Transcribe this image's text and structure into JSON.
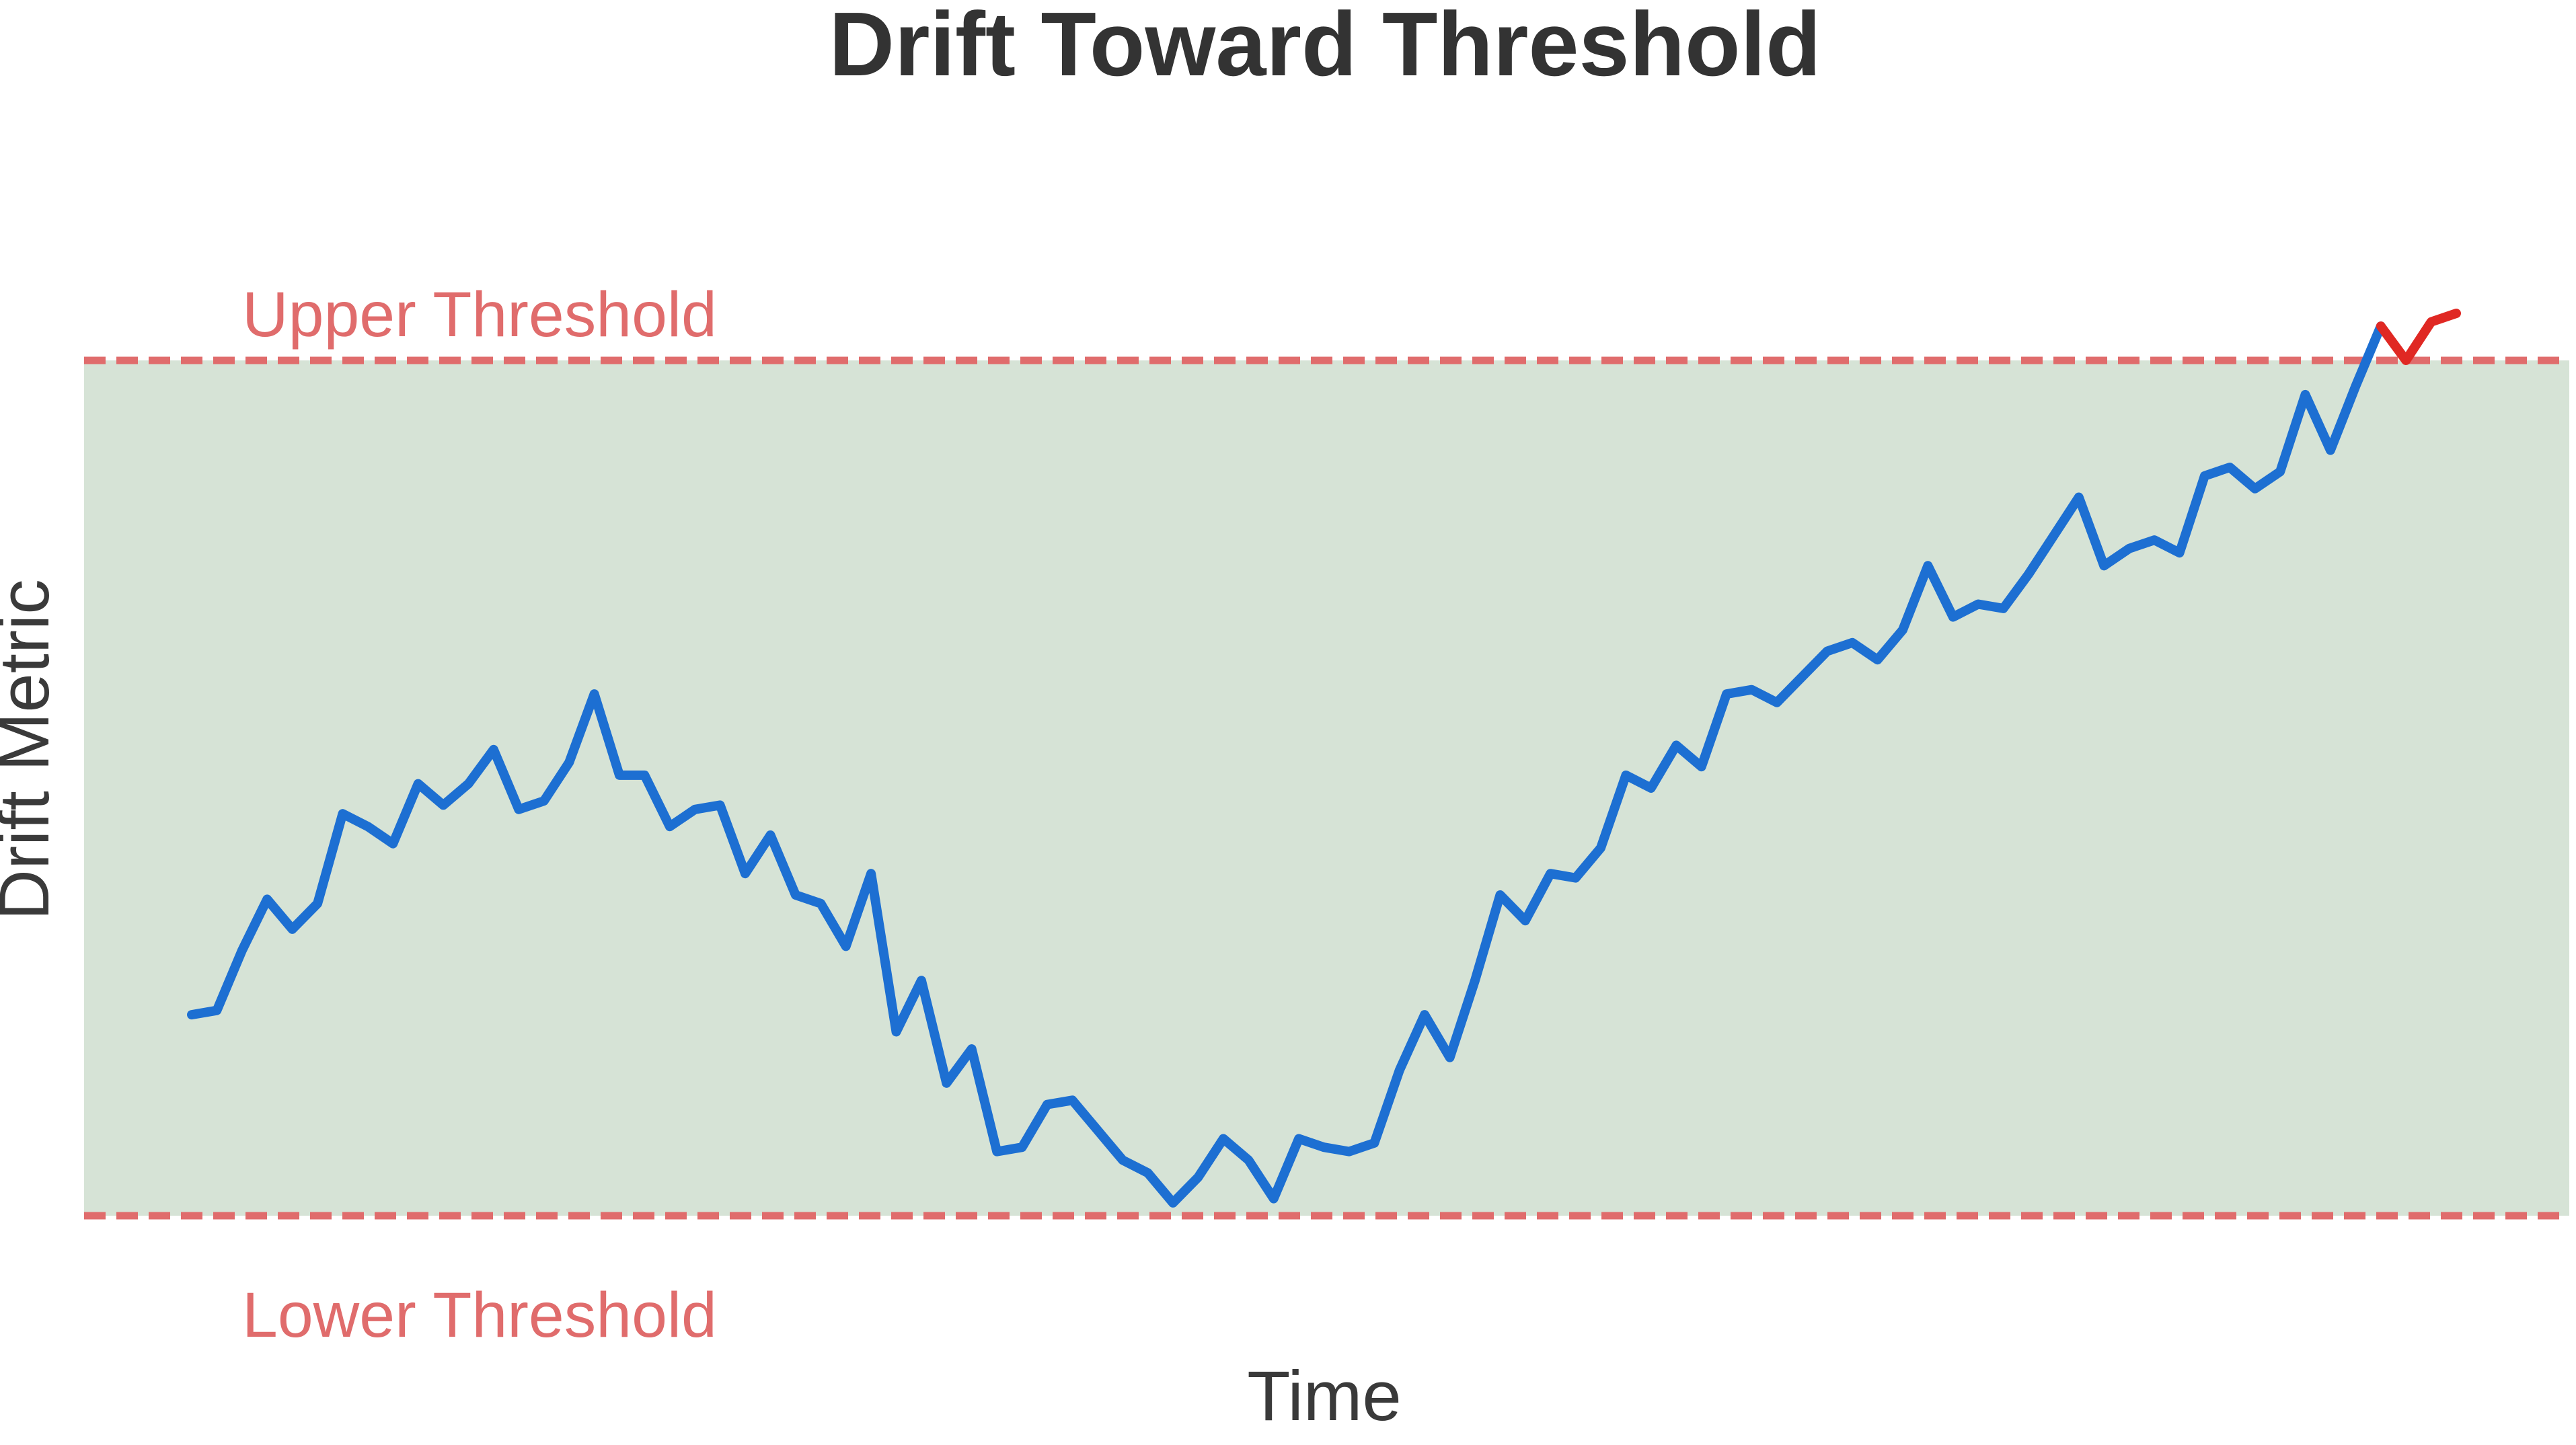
{
  "chart_data": {
    "type": "line",
    "title": "Drift Toward Threshold",
    "xlabel": "Time",
    "ylabel": "Drift Metric",
    "legend_position": "none",
    "grid": false,
    "axes_ticks_visible": false,
    "upper_threshold": 1.0,
    "lower_threshold": -1.0,
    "ylim": [
      -1.3,
      1.45
    ],
    "annotations": {
      "upper": "Upper Threshold",
      "lower": "Lower Threshold"
    },
    "series": [
      {
        "name": "drift-metric",
        "breach_start_index": 87,
        "values": [
          -0.53,
          -0.52,
          -0.38,
          -0.26,
          -0.33,
          -0.27,
          -0.06,
          -0.09,
          -0.13,
          0.01,
          -0.04,
          0.01,
          0.09,
          -0.05,
          -0.03,
          0.06,
          0.22,
          0.03,
          0.03,
          -0.09,
          -0.05,
          -0.04,
          -0.2,
          -0.11,
          -0.25,
          -0.27,
          -0.37,
          -0.2,
          -0.57,
          -0.45,
          -0.69,
          -0.61,
          -0.85,
          -0.84,
          -0.74,
          -0.73,
          -0.8,
          -0.87,
          -0.9,
          -0.97,
          -0.91,
          -0.82,
          -0.87,
          -0.96,
          -0.82,
          -0.84,
          -0.85,
          -0.83,
          -0.66,
          -0.53,
          -0.63,
          -0.45,
          -0.25,
          -0.31,
          -0.2,
          -0.21,
          -0.14,
          0.03,
          0.0,
          0.1,
          0.05,
          0.22,
          0.23,
          0.2,
          0.26,
          0.32,
          0.34,
          0.3,
          0.37,
          0.52,
          0.4,
          0.43,
          0.42,
          0.5,
          0.59,
          0.68,
          0.52,
          0.56,
          0.58,
          0.55,
          0.73,
          0.75,
          0.7,
          0.74,
          0.92,
          0.79,
          0.94,
          1.08,
          1.0,
          1.09,
          1.11
        ]
      }
    ],
    "colors": {
      "series_line": "#1d6fd2",
      "breach_line": "#e02823",
      "threshold_line": "#e06c6c",
      "threshold_label": "#e06c6c",
      "band_fill": "#d6e3d6",
      "title_text": "#333333",
      "axis_label_text": "#3a3a3a",
      "background": "#ffffff"
    }
  }
}
